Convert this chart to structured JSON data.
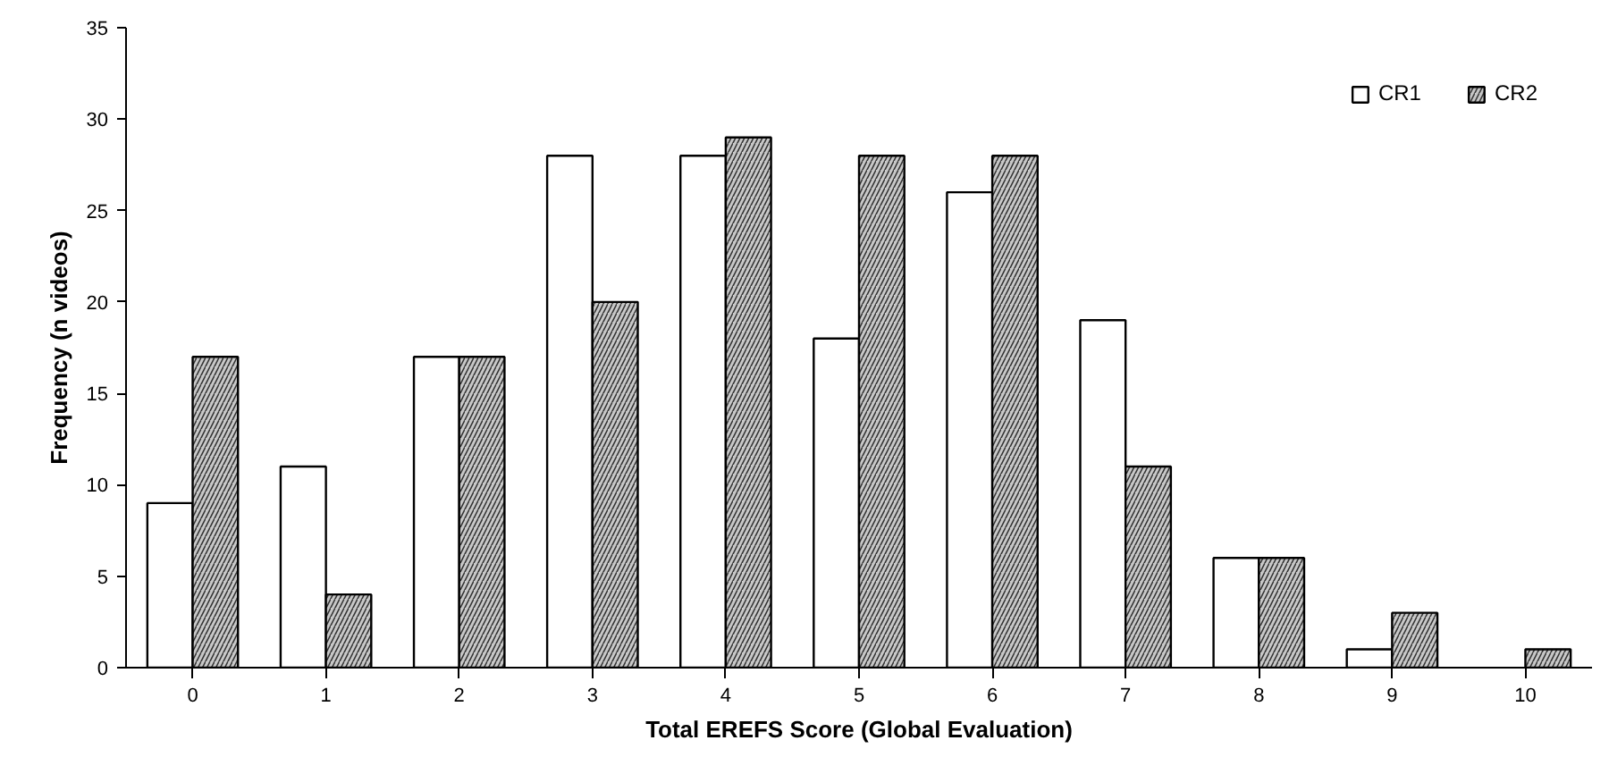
{
  "chart_data": {
    "type": "bar",
    "xlabel": "Total EREFS Score (Global Evaluation)",
    "ylabel": "Frequency (n videos)",
    "categories": [
      "0",
      "1",
      "2",
      "3",
      "4",
      "5",
      "6",
      "7",
      "8",
      "9",
      "10"
    ],
    "series": [
      {
        "name": "CR1",
        "color": "#ffffff",
        "values": [
          9,
          11,
          17,
          28,
          28,
          18,
          26,
          19,
          6,
          1,
          0
        ]
      },
      {
        "name": "CR2",
        "color": "#c8c8c8",
        "values": [
          17,
          4,
          17,
          20,
          29,
          28,
          28,
          11,
          6,
          3,
          1
        ]
      }
    ],
    "ylim": [
      0,
      35
    ],
    "yticks": [
      0,
      5,
      10,
      15,
      20,
      25,
      30,
      35
    ],
    "grid": false,
    "legend": "top right"
  }
}
